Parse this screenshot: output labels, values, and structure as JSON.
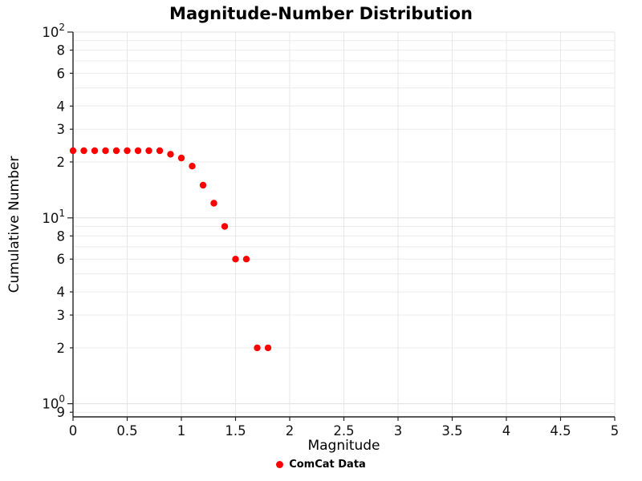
{
  "title": "Magnitude-Number Distribution",
  "chart_data": {
    "type": "scatter",
    "title": "Magnitude-Number Distribution",
    "xlabel": "Magnitude",
    "ylabel": "Cumulative Number",
    "x_scale": "linear",
    "y_scale": "log",
    "grid": true,
    "xlim": [
      0,
      5
    ],
    "ylim": [
      0.85,
      100
    ],
    "legend_position": "bottom-center",
    "legend": [
      {
        "name": "ComCat Data",
        "color": "#ff0000"
      }
    ],
    "x": [
      0.0,
      0.1,
      0.2,
      0.3,
      0.4,
      0.5,
      0.6,
      0.7,
      0.8,
      0.9,
      1.0,
      1.1,
      1.2,
      1.3,
      1.4,
      1.5,
      1.6,
      1.7,
      1.8
    ],
    "y": [
      23,
      23,
      23,
      23,
      23,
      23,
      23,
      23,
      23,
      22,
      21,
      19,
      15,
      12,
      9,
      6,
      6,
      2,
      2
    ],
    "x_ticks": [
      {
        "value": 0,
        "label": "0"
      },
      {
        "value": 0.5,
        "label": "0.5"
      },
      {
        "value": 1,
        "label": "1"
      },
      {
        "value": 1.5,
        "label": "1.5"
      },
      {
        "value": 2,
        "label": "2"
      },
      {
        "value": 2.5,
        "label": "2.5"
      },
      {
        "value": 3,
        "label": "3"
      },
      {
        "value": 3.5,
        "label": "3.5"
      },
      {
        "value": 4,
        "label": "4"
      },
      {
        "value": 4.5,
        "label": "4.5"
      },
      {
        "value": 5,
        "label": "5"
      }
    ],
    "y_ticks": [
      {
        "value": 100,
        "label": "10^2",
        "major": true
      },
      {
        "value": 80,
        "label": "8"
      },
      {
        "value": 60,
        "label": "6"
      },
      {
        "value": 40,
        "label": "4"
      },
      {
        "value": 30,
        "label": "3"
      },
      {
        "value": 20,
        "label": "2"
      },
      {
        "value": 10,
        "label": "10^1",
        "major": true
      },
      {
        "value": 8,
        "label": "8"
      },
      {
        "value": 6,
        "label": "6"
      },
      {
        "value": 4,
        "label": "4"
      },
      {
        "value": 3,
        "label": "3"
      },
      {
        "value": 2,
        "label": "2"
      },
      {
        "value": 1,
        "label": "10^0",
        "major": true
      },
      {
        "value": 0.9,
        "label": "9"
      }
    ]
  }
}
